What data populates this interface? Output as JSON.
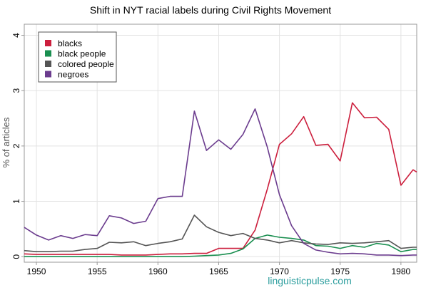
{
  "chart_data": {
    "type": "line",
    "title": "Shift in NYT racial labels during Civil Rights Movement",
    "xlabel": "",
    "ylabel": "% of articles",
    "xlim": [
      1949,
      1981.3
    ],
    "ylim": [
      -0.1,
      4.2
    ],
    "xticks": [
      1950,
      1955,
      1960,
      1965,
      1970,
      1975,
      1980
    ],
    "yticks": [
      0,
      1,
      2,
      3,
      4
    ],
    "grid": true,
    "legend": "top-left",
    "x": [
      1949,
      1950,
      1951,
      1952,
      1953,
      1954,
      1955,
      1956,
      1957,
      1958,
      1959,
      1960,
      1961,
      1962,
      1963,
      1964,
      1965,
      1966,
      1967,
      1968,
      1969,
      1970,
      1971,
      1972,
      1973,
      1974,
      1975,
      1976,
      1977,
      1978,
      1979,
      1980,
      1981,
      1981.3
    ],
    "series": [
      {
        "name": "blacks",
        "color": "#cc1f3d",
        "values": [
          0.05,
          0.04,
          0.04,
          0.04,
          0.04,
          0.04,
          0.04,
          0.04,
          0.03,
          0.03,
          0.03,
          0.04,
          0.05,
          0.05,
          0.06,
          0.06,
          0.15,
          0.15,
          0.15,
          0.48,
          1.22,
          2.03,
          2.22,
          2.53,
          2.01,
          2.03,
          1.73,
          2.78,
          2.51,
          2.52,
          2.3,
          1.29,
          1.57,
          1.53
        ]
      },
      {
        "name": "black people",
        "color": "#1a8f50",
        "values": [
          0.0,
          0.0,
          0.0,
          0.0,
          0.0,
          0.0,
          0.0,
          0.0,
          0.0,
          0.0,
          0.0,
          0.0,
          0.0,
          0.0,
          0.01,
          0.02,
          0.03,
          0.06,
          0.14,
          0.33,
          0.39,
          0.35,
          0.33,
          0.3,
          0.2,
          0.19,
          0.15,
          0.2,
          0.17,
          0.24,
          0.21,
          0.09,
          0.13,
          0.13
        ]
      },
      {
        "name": "colored people",
        "color": "#555555",
        "values": [
          0.11,
          0.09,
          0.09,
          0.1,
          0.1,
          0.13,
          0.15,
          0.26,
          0.25,
          0.27,
          0.2,
          0.24,
          0.27,
          0.32,
          0.75,
          0.54,
          0.44,
          0.38,
          0.42,
          0.33,
          0.3,
          0.25,
          0.29,
          0.25,
          0.23,
          0.22,
          0.25,
          0.24,
          0.25,
          0.27,
          0.29,
          0.15,
          0.17,
          0.17
        ]
      },
      {
        "name": "negroes",
        "color": "#6b3c8e",
        "values": [
          0.53,
          0.39,
          0.3,
          0.38,
          0.33,
          0.4,
          0.38,
          0.74,
          0.7,
          0.6,
          0.64,
          1.05,
          1.09,
          1.09,
          2.63,
          1.92,
          2.11,
          1.94,
          2.21,
          2.67,
          1.98,
          1.12,
          0.56,
          0.24,
          0.12,
          0.08,
          0.05,
          0.06,
          0.05,
          0.03,
          0.03,
          0.02,
          0.03,
          0.03
        ]
      }
    ]
  },
  "footer": "linguisticpulse.com",
  "colors": {
    "footer": "#2a9d9d",
    "grid": "#e3e3e3",
    "axis": "#999999"
  }
}
